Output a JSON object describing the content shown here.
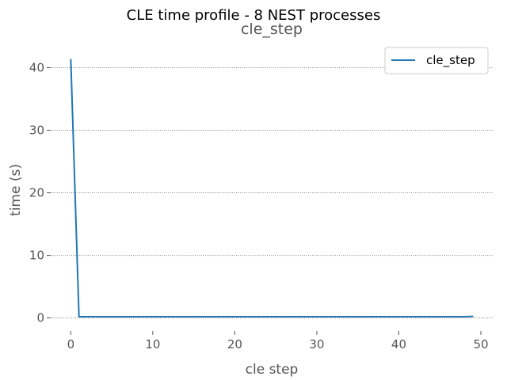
{
  "chart_data": {
    "type": "line",
    "suptitle": "CLE time profile - 8 NEST processes",
    "title": "cle_step",
    "xlabel": "cle step",
    "ylabel": "time (s)",
    "xlim": [
      -2.45,
      51.45
    ],
    "ylim": [
      -2.07,
      43.35
    ],
    "xticks": [
      0,
      10,
      20,
      30,
      40,
      50
    ],
    "yticks": [
      0,
      10,
      20,
      30,
      40
    ],
    "grid": {
      "y": true,
      "x": false,
      "style": "dotted"
    },
    "legend": {
      "position": "top-right"
    },
    "series": [
      {
        "name": "cle_step",
        "color": "#1f77b4",
        "x": [
          0,
          1,
          2,
          3,
          4,
          5,
          6,
          7,
          8,
          9,
          10,
          11,
          12,
          13,
          14,
          15,
          16,
          17,
          18,
          19,
          20,
          21,
          22,
          23,
          24,
          25,
          26,
          27,
          28,
          29,
          30,
          31,
          32,
          33,
          34,
          35,
          36,
          37,
          38,
          39,
          40,
          41,
          42,
          43,
          44,
          45,
          46,
          47,
          48,
          49
        ],
        "y": [
          41.3,
          0.2,
          0.2,
          0.2,
          0.2,
          0.2,
          0.2,
          0.2,
          0.2,
          0.2,
          0.2,
          0.2,
          0.2,
          0.2,
          0.2,
          0.2,
          0.2,
          0.2,
          0.2,
          0.2,
          0.2,
          0.2,
          0.2,
          0.2,
          0.2,
          0.2,
          0.2,
          0.2,
          0.2,
          0.2,
          0.2,
          0.2,
          0.2,
          0.2,
          0.2,
          0.2,
          0.2,
          0.2,
          0.2,
          0.2,
          0.2,
          0.2,
          0.2,
          0.2,
          0.2,
          0.2,
          0.2,
          0.2,
          0.2,
          0.25
        ]
      }
    ]
  }
}
